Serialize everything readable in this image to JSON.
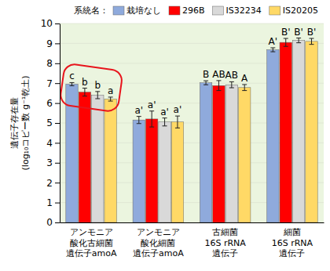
{
  "chart_data": {
    "type": "bar",
    "categories": [
      "アンモニア\n酸化古細菌\n遺伝子amoA",
      "アンモニア\n酸化細菌\n遺伝子amoA",
      "古細菌\n16S rRNA\n遺伝子",
      "細菌\n16S rRNA\n遺伝子"
    ],
    "y_label": [
      "遺伝子存在量",
      "(log₁₀コピー数 g⁻¹乾土)"
    ],
    "legend_title": "系統名：",
    "legend": "top",
    "grid": true,
    "ylim": [
      0,
      10
    ],
    "yticks": [
      0,
      1,
      2,
      3,
      4,
      5,
      6,
      7,
      8,
      9,
      10
    ],
    "series": [
      {
        "name": "栽培なし",
        "color": "#8faadc",
        "values": [
          6.95,
          5.15,
          7.02,
          8.68
        ],
        "errors": [
          0.08,
          0.18,
          0.1,
          0.1
        ],
        "letters": [
          "c",
          "a'",
          "B",
          "A'"
        ]
      },
      {
        "name": "296B",
        "color": "#ff0000",
        "values": [
          6.55,
          5.2,
          6.88,
          9.05
        ],
        "errors": [
          0.2,
          0.4,
          0.25,
          0.2
        ],
        "letters": [
          "b",
          "a'",
          "AB",
          "B'"
        ]
      },
      {
        "name": "IS32234",
        "color": "#d9d9d9",
        "values": [
          6.4,
          5.05,
          6.92,
          9.15
        ],
        "errors": [
          0.18,
          0.2,
          0.15,
          0.12
        ],
        "letters": [
          "b",
          "a'",
          "AB",
          "B'"
        ]
      },
      {
        "name": "IS20205",
        "color": "#ffd966",
        "values": [
          6.2,
          5.05,
          6.78,
          9.1
        ],
        "errors": [
          0.1,
          0.3,
          0.15,
          0.15
        ],
        "letters": [
          "a",
          "a'",
          "A",
          "B'"
        ]
      }
    ]
  }
}
